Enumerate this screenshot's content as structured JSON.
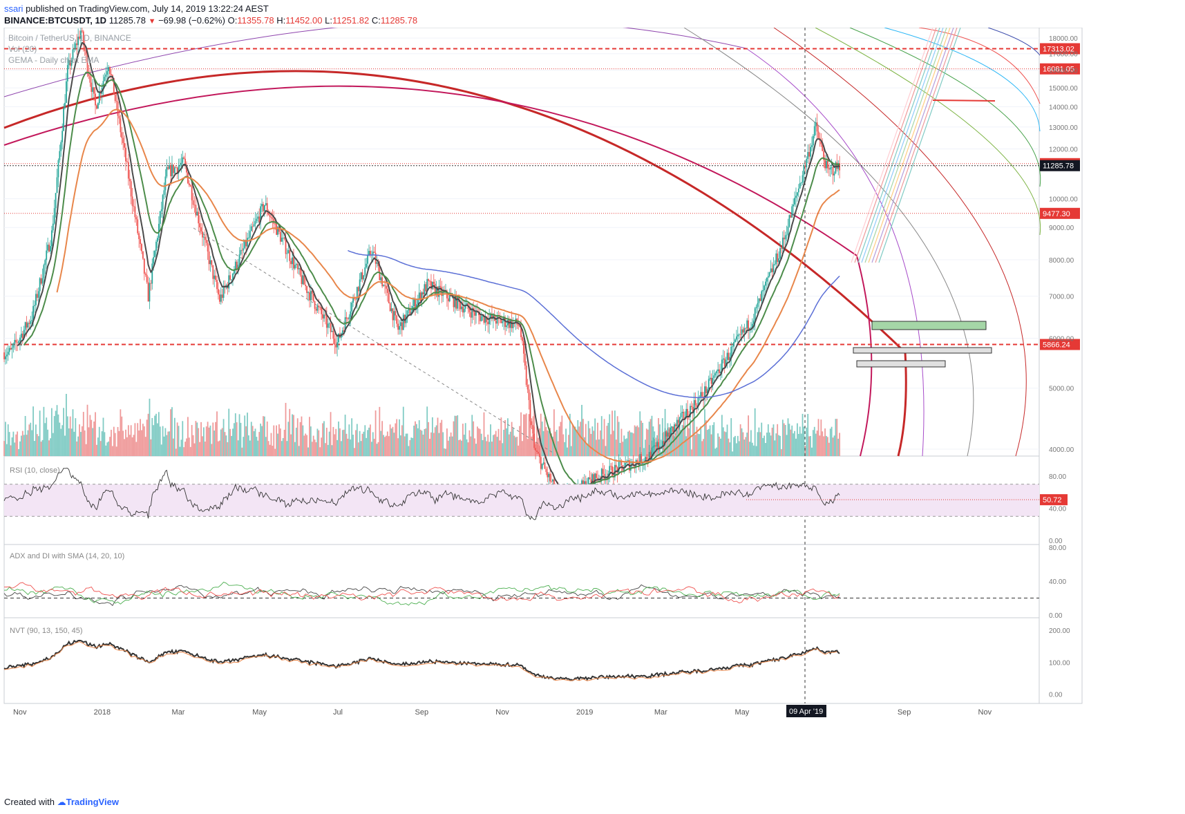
{
  "header": {
    "user": "ssari",
    "published_text": "published on TradingView.com, July 14, 2019 13:22:24 AEST",
    "symbol": "BINANCE:BTCUSDT, 1D",
    "last": "11285.78",
    "change": "−69.98 (−0.62%)",
    "ohlc_o_label": "O:",
    "ohlc_o": "11355.78",
    "ohlc_h_label": "H:",
    "ohlc_h": "11452.00",
    "ohlc_l_label": "L:",
    "ohlc_l": "11251.82",
    "ohlc_c_label": "C:",
    "ohlc_c": "11285.78"
  },
  "legend": {
    "line1": "Bitcoin / TetherUS, 1D, BINANCE",
    "line2": "Vol (20)",
    "line3": "GEMA - Daily chart EMA"
  },
  "footer": {
    "created_with": "Created with",
    "brand": "TradingView"
  },
  "colors": {
    "up": "#26a69a",
    "down": "#ef5350",
    "ema_black": "#4a4a4a",
    "ema_green": "#4c8c4a",
    "ema_orange": "#e8864a",
    "ema_blue": "#5b6fd6",
    "arc_red": "#c62828",
    "arc_magenta": "#c2185b",
    "hline_red": "#e53935",
    "rsi_band": "#f3e5f5"
  },
  "chart_data": [
    {
      "type": "candlestick",
      "name": "BINANCE:BTCUSDT, 1D",
      "y_scale": "log",
      "ylim": [
        3900,
        18700
      ],
      "y_ticks": [
        "18000.00",
        "17000.00",
        "16000.00",
        "15000.00",
        "14000.00",
        "13000.00",
        "12000.00",
        "10000.00",
        "9000.00",
        "8000.00",
        "7000.00",
        "6000.00",
        "5000.00",
        "4000.00"
      ],
      "x_ticks": [
        "Nov",
        "2018",
        "Mar",
        "May",
        "Jul",
        "Sep",
        "Nov",
        "2019",
        "Mar",
        "May",
        "Jul",
        "Sep",
        "Nov"
      ],
      "crosshair_x_label": "09 Apr '19",
      "price_labels": [
        {
          "value": "17313.02",
          "style": "dashed-red"
        },
        {
          "value": "16081.05",
          "style": "dotted-red"
        },
        {
          "value": "11369.61",
          "style": "dotted-red"
        },
        {
          "value": "11285.78",
          "style": "last-price"
        },
        {
          "value": "9477.30",
          "style": "dotted-red"
        },
        {
          "value": "5866.24",
          "style": "dashed-red"
        }
      ],
      "approx_close_path": [
        {
          "date": "2017-10-25",
          "close": 5700
        },
        {
          "date": "2017-11-10",
          "close": 6500
        },
        {
          "date": "2017-11-25",
          "close": 8800
        },
        {
          "date": "2017-12-07",
          "close": 16000
        },
        {
          "date": "2017-12-17",
          "close": 18500
        },
        {
          "date": "2017-12-28",
          "close": 14000
        },
        {
          "date": "2018-01-07",
          "close": 16500
        },
        {
          "date": "2018-01-20",
          "close": 11500
        },
        {
          "date": "2018-02-06",
          "close": 7000
        },
        {
          "date": "2018-02-20",
          "close": 11000
        },
        {
          "date": "2018-03-05",
          "close": 11400
        },
        {
          "date": "2018-04-01",
          "close": 6900
        },
        {
          "date": "2018-05-05",
          "close": 9800
        },
        {
          "date": "2018-06-01",
          "close": 7500
        },
        {
          "date": "2018-06-29",
          "close": 5900
        },
        {
          "date": "2018-07-25",
          "close": 8300
        },
        {
          "date": "2018-08-14",
          "close": 6200
        },
        {
          "date": "2018-09-05",
          "close": 7300
        },
        {
          "date": "2018-10-15",
          "close": 6500
        },
        {
          "date": "2018-11-14",
          "close": 6300
        },
        {
          "date": "2018-11-25",
          "close": 4000
        },
        {
          "date": "2018-12-15",
          "close": 3300
        },
        {
          "date": "2019-01-10",
          "close": 3600
        },
        {
          "date": "2019-02-20",
          "close": 3900
        },
        {
          "date": "2019-04-02",
          "close": 4900
        },
        {
          "date": "2019-05-10",
          "close": 6500
        },
        {
          "date": "2019-06-01",
          "close": 8500
        },
        {
          "date": "2019-06-26",
          "close": 13000
        },
        {
          "date": "2019-07-05",
          "close": 11000
        },
        {
          "date": "2019-07-14",
          "close": 11285.78
        }
      ]
    },
    {
      "type": "line",
      "name": "RSI (10, close)",
      "legend": "RSI (10, close)",
      "ylim": [
        0,
        100
      ],
      "y_ticks": [
        "80.00",
        "40.00",
        "0.00"
      ],
      "band": [
        30,
        70
      ],
      "last_value": "50.72"
    },
    {
      "type": "line",
      "name": "ADX and DI with SMA",
      "legend": "ADX and DI with SMA (14, 20, 10)",
      "ylim": [
        0,
        80
      ],
      "y_ticks": [
        "80.00",
        "40.00",
        "0.00"
      ],
      "reference_level": 20
    },
    {
      "type": "line",
      "name": "NVT",
      "legend": "NVT (90, 13, 150, 45)",
      "ylim": [
        -20,
        230
      ],
      "y_ticks": [
        "200.00",
        "100.00",
        "0.00"
      ]
    }
  ]
}
